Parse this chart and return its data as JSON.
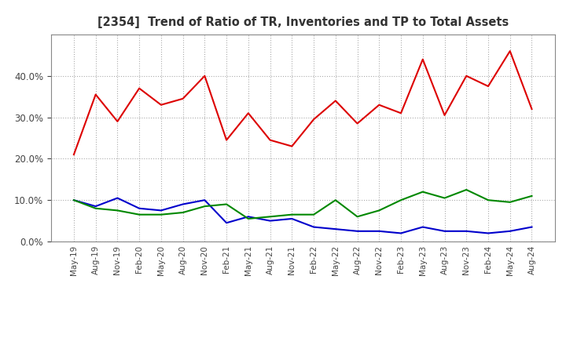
{
  "title": "[2354]  Trend of Ratio of TR, Inventories and TP to Total Assets",
  "x_labels": [
    "May-19",
    "Aug-19",
    "Nov-19",
    "Feb-20",
    "May-20",
    "Aug-20",
    "Nov-20",
    "Feb-21",
    "May-21",
    "Aug-21",
    "Nov-21",
    "Feb-22",
    "May-22",
    "Aug-22",
    "Nov-22",
    "Feb-23",
    "May-23",
    "Aug-23",
    "Nov-23",
    "Feb-24",
    "May-24",
    "Aug-24"
  ],
  "trade_receivables": [
    0.21,
    0.355,
    0.29,
    0.37,
    0.33,
    0.345,
    0.4,
    0.245,
    0.31,
    0.245,
    0.23,
    0.295,
    0.34,
    0.285,
    0.33,
    0.31,
    0.44,
    0.305,
    0.4,
    0.375,
    0.46,
    0.32
  ],
  "inventories": [
    0.1,
    0.085,
    0.105,
    0.08,
    0.075,
    0.09,
    0.1,
    0.045,
    0.06,
    0.05,
    0.055,
    0.035,
    0.03,
    0.025,
    0.025,
    0.02,
    0.035,
    0.025,
    0.025,
    0.02,
    0.025,
    0.035
  ],
  "trade_payables": [
    0.1,
    0.08,
    0.075,
    0.065,
    0.065,
    0.07,
    0.085,
    0.09,
    0.055,
    0.06,
    0.065,
    0.065,
    0.1,
    0.06,
    0.075,
    0.1,
    0.12,
    0.105,
    0.125,
    0.1,
    0.095,
    0.11
  ],
  "tr_color": "#dd0000",
  "inv_color": "#0000cc",
  "tp_color": "#008800",
  "ylim": [
    0.0,
    0.5
  ],
  "yticks": [
    0.0,
    0.1,
    0.2,
    0.3,
    0.4
  ],
  "background_color": "#ffffff",
  "grid_color": "#aaaaaa"
}
